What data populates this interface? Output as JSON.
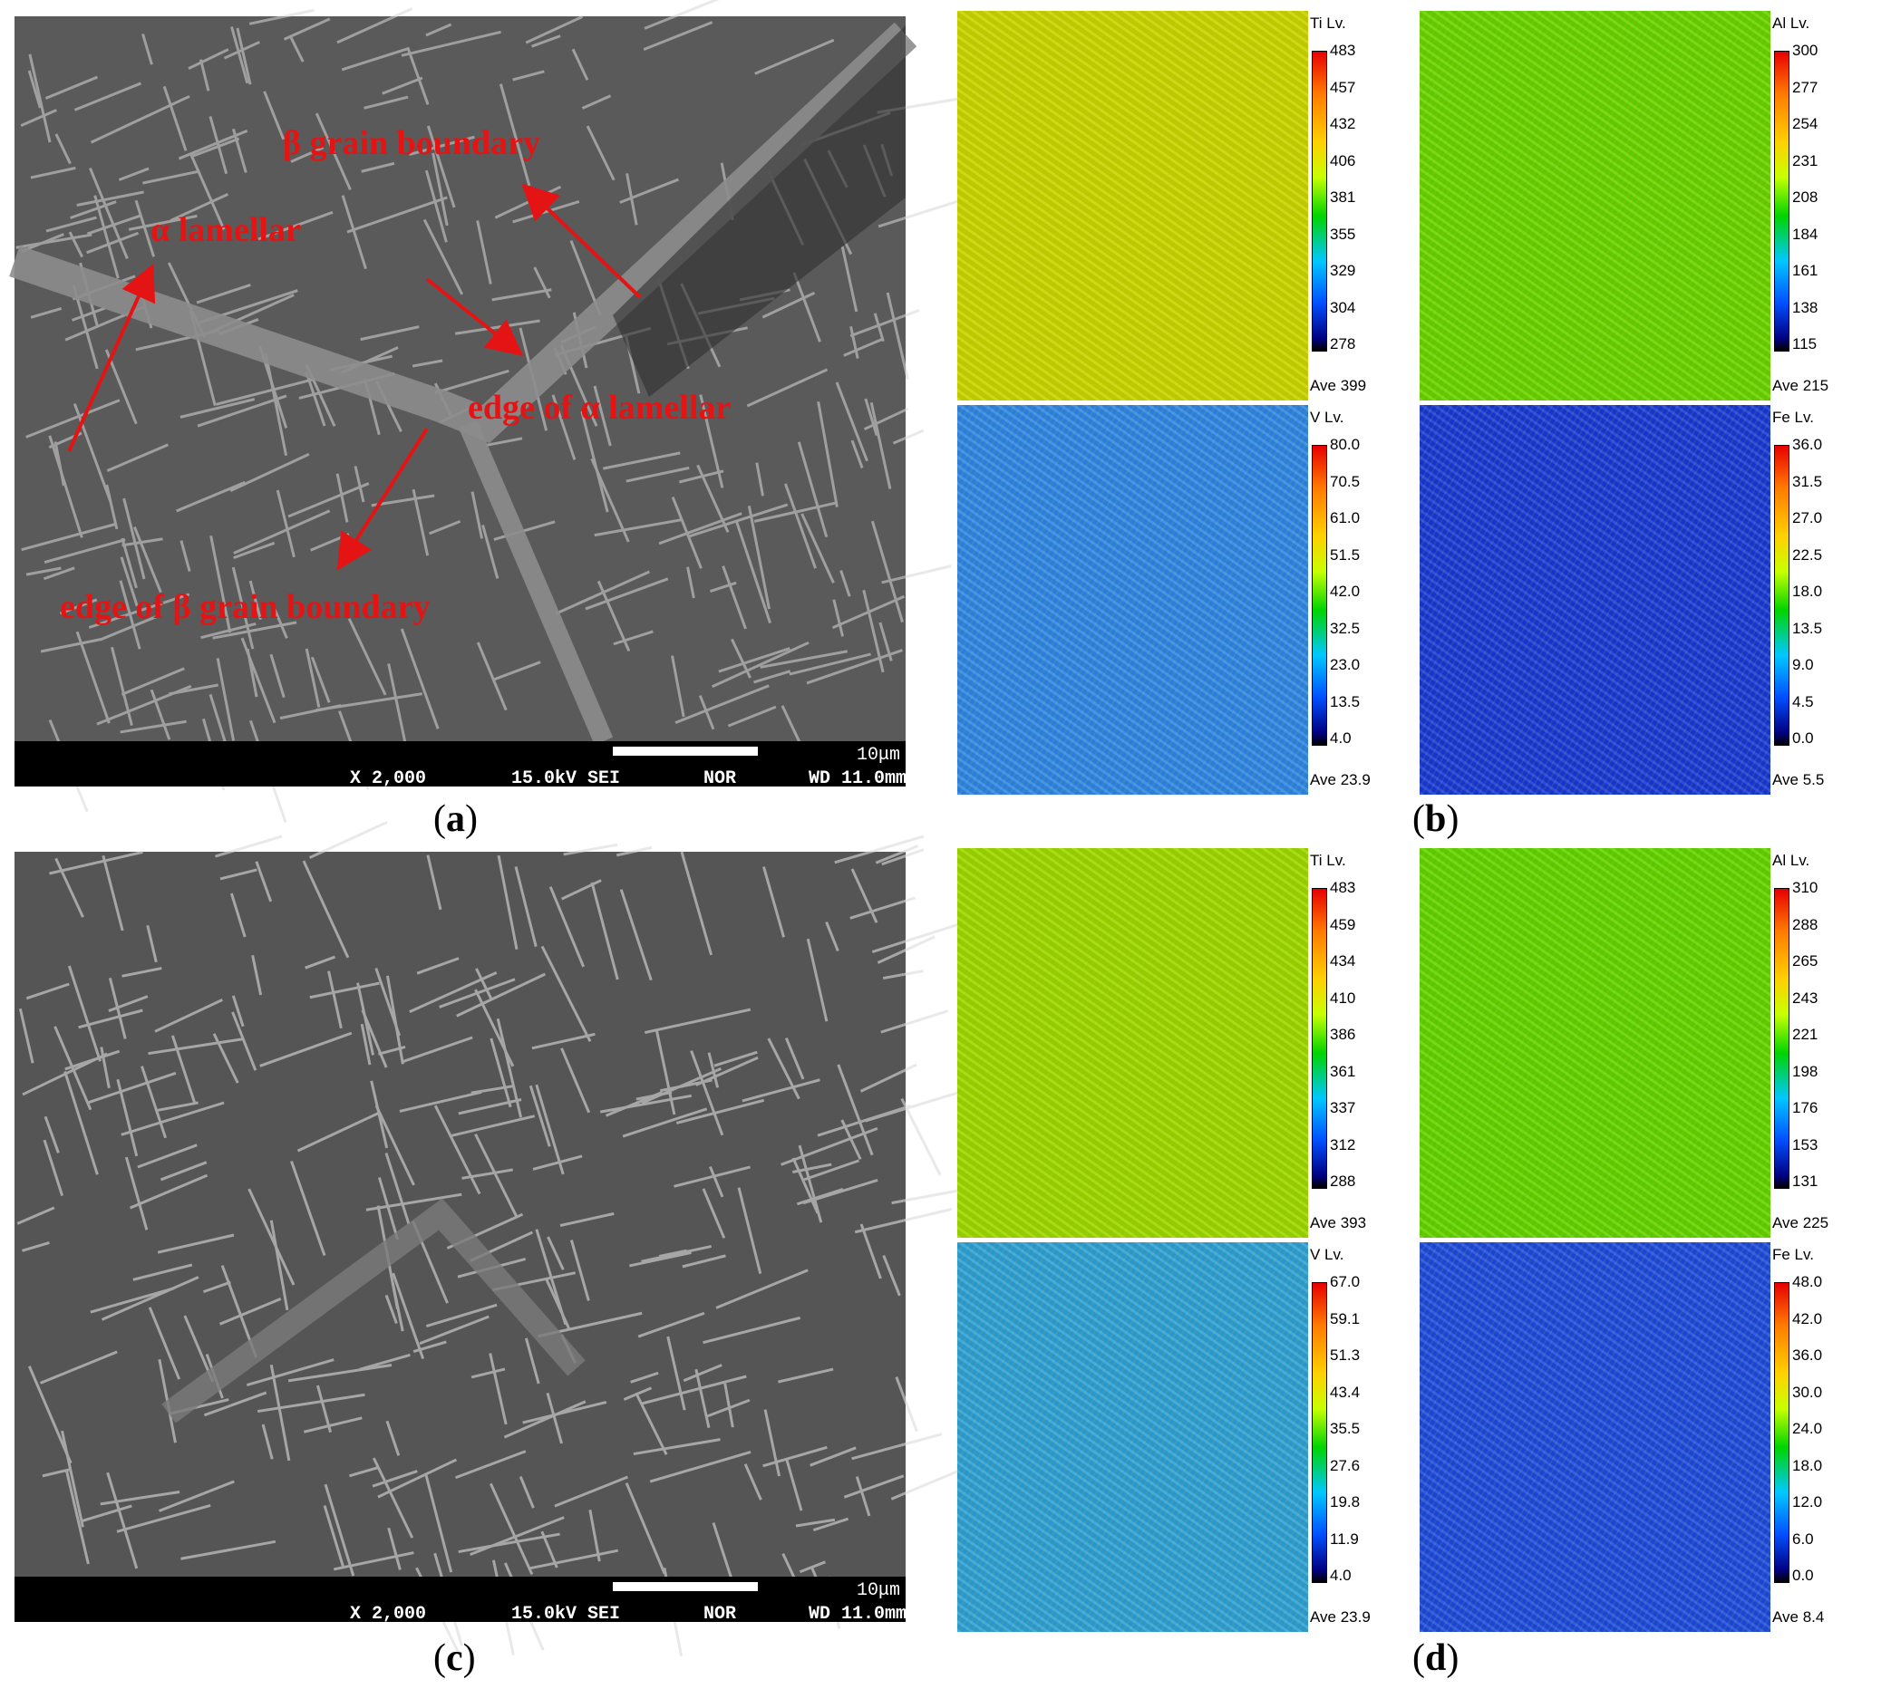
{
  "sem_a": {
    "scale": "10μm",
    "magnification": "X 2,000",
    "voltage": "15.0kV SEI",
    "mode": "NOR",
    "wd": "WD 11.0mm",
    "annotations": {
      "beta_gb": "β grain boundary",
      "alpha_lamellar": "α lamellar",
      "edge_alpha": "edge of α lamellar",
      "edge_beta": "edge of β grain boundary"
    }
  },
  "sem_c": {
    "scale": "10μm",
    "magnification": "X 2,000",
    "voltage": "15.0kV SEI",
    "mode": "NOR",
    "wd": "WD 11.0mm"
  },
  "maps_b": [
    {
      "header": "Ti  Lv.",
      "ticks": [
        "483",
        "457",
        "432",
        "406",
        "381",
        "355",
        "329",
        "304",
        "278"
      ],
      "ave": "Ave 399",
      "base": "#c8d400"
    },
    {
      "header": "Al  Lv.",
      "ticks": [
        "300",
        "277",
        "254",
        "231",
        "208",
        "184",
        "161",
        "138",
        "115"
      ],
      "ave": "Ave 215",
      "base": "#66d400"
    },
    {
      "header": "V  Lv.",
      "ticks": [
        "80.0",
        "70.5",
        "61.0",
        "51.5",
        "42.0",
        "32.5",
        "23.0",
        "13.5",
        "4.0"
      ],
      "ave": "Ave 23.9",
      "base": "#2a86e8"
    },
    {
      "header": "Fe  Lv.",
      "ticks": [
        "36.0",
        "31.5",
        "27.0",
        "22.5",
        "18.0",
        "13.5",
        "9.0",
        "4.5",
        "0.0"
      ],
      "ave": "Ave 5.5",
      "base": "#1438d8"
    }
  ],
  "maps_d": [
    {
      "header": "Ti  Lv.",
      "ticks": [
        "483",
        "459",
        "434",
        "410",
        "386",
        "361",
        "337",
        "312",
        "288"
      ],
      "ave": "Ave 393",
      "base": "#9ad800"
    },
    {
      "header": "Al  Lv.",
      "ticks": [
        "310",
        "288",
        "265",
        "243",
        "221",
        "198",
        "176",
        "153",
        "131"
      ],
      "ave": "Ave 225",
      "base": "#60d400"
    },
    {
      "header": "V  Lv.",
      "ticks": [
        "67.0",
        "59.1",
        "51.3",
        "43.4",
        "35.5",
        "27.6",
        "19.8",
        "11.9",
        "4.0"
      ],
      "ave": "Ave 23.9",
      "base": "#2aa0d8"
    },
    {
      "header": "Fe  Lv.",
      "ticks": [
        "48.0",
        "42.0",
        "36.0",
        "30.0",
        "24.0",
        "18.0",
        "12.0",
        "6.0",
        "0.0"
      ],
      "ave": "Ave 8.4",
      "base": "#1a4ae0"
    }
  ],
  "captions": {
    "a": "a",
    "b": "b",
    "c": "c",
    "d": "d"
  }
}
